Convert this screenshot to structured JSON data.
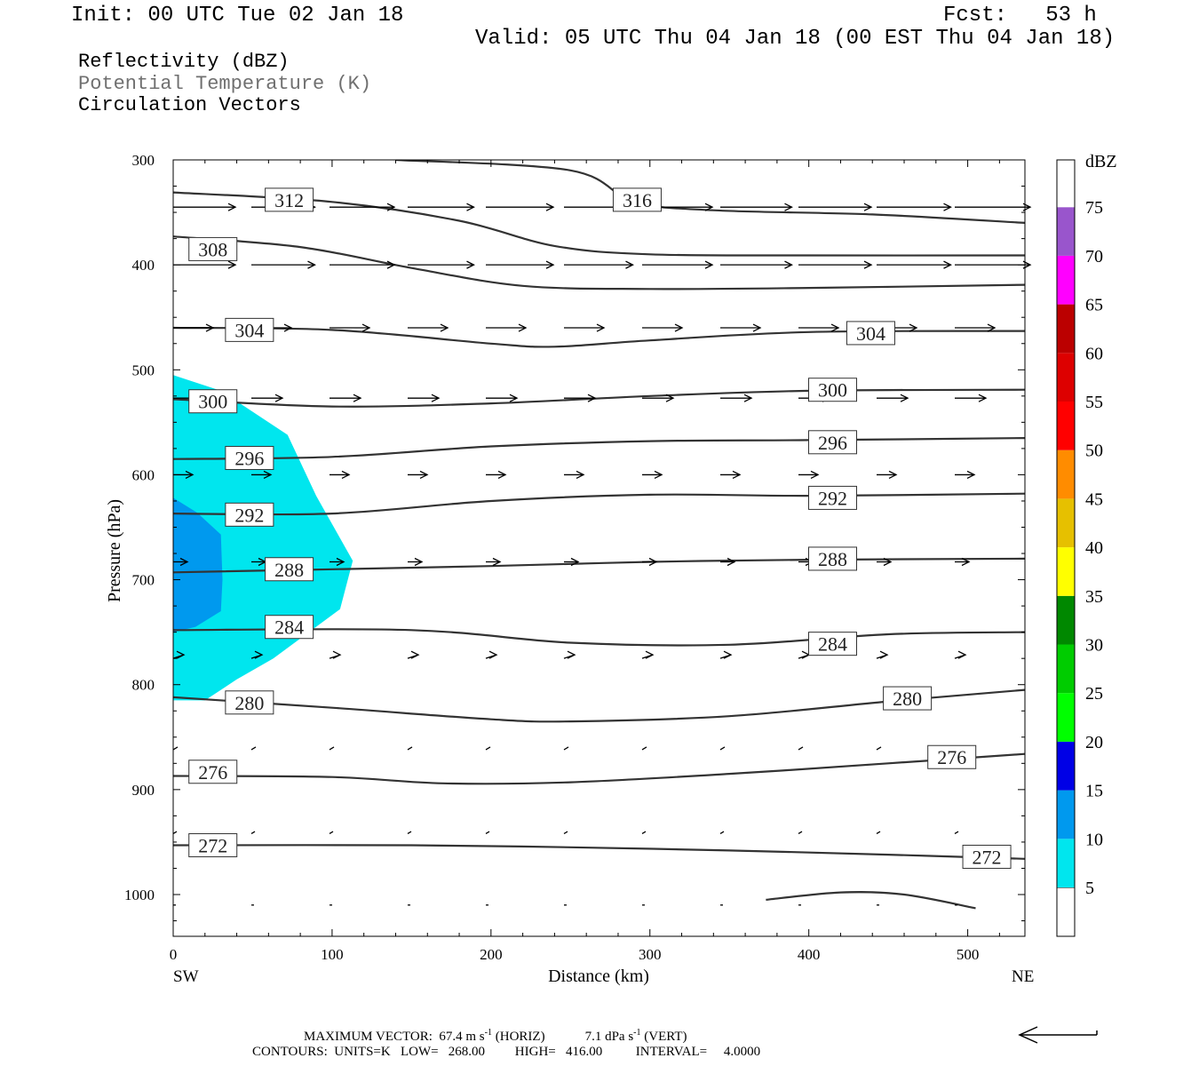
{
  "header": {
    "init": "Init: 00 UTC Tue 02 Jan 18",
    "fcst": "Fcst:   53 h",
    "valid": "Valid: 05 UTC Thu 04 Jan 18 (00 EST Thu 04 Jan 18)"
  },
  "legend_lines": {
    "reflectivity": "Reflectivity (dBZ)",
    "theta": "Potential Temperature (K)",
    "vectors": "Circulation Vectors"
  },
  "footer": {
    "max_vector_label": "MAXIMUM VECTOR:",
    "max_horiz": "67.4 m s",
    "horiz_tag": "(HORIZ)",
    "max_vert": "7.1 dPa s",
    "vert_tag": "(VERT)",
    "contours": "CONTOURS:  UNITS=K   LOW=   268.00         HIGH=   416.00          INTERVAL=     4.0000"
  },
  "colors": {
    "dbz_5": "#00e6ee",
    "dbz_10": "#0099ee",
    "dbz_15": "#0000e6",
    "contour": "#333333"
  },
  "chart_data": {
    "type": "cross-section",
    "xlabel": "Distance (km)",
    "ylabel": "Pressure (hPa)",
    "xlim": [
      0,
      536
    ],
    "ylim": [
      1040,
      300
    ],
    "x_ticks": [
      0,
      100,
      200,
      300,
      400,
      500
    ],
    "y_ticks": [
      300,
      400,
      500,
      600,
      700,
      800,
      900,
      1000
    ],
    "x_end_labels": {
      "left": "SW",
      "right": "NE"
    },
    "colorbar": {
      "unit": "dBZ",
      "levels": [
        5,
        10,
        15,
        20,
        25,
        30,
        35,
        40,
        45,
        50,
        55,
        60,
        65,
        70,
        75
      ],
      "colors": [
        "#00e6ee",
        "#0099ee",
        "#0000e6",
        "#00ff00",
        "#00cc00",
        "#008800",
        "#ffff00",
        "#e6c000",
        "#ff8c00",
        "#ff0000",
        "#dd0000",
        "#bb0000",
        "#ff00ff",
        "#9955cc",
        "#ffffff"
      ]
    },
    "reflectivity": [
      {
        "level": 5,
        "polygon": [
          [
            0,
            505
          ],
          [
            30,
            520
          ],
          [
            72,
            562
          ],
          [
            90,
            620
          ],
          [
            113,
            682
          ],
          [
            105,
            728
          ],
          [
            63,
            775
          ],
          [
            40,
            795
          ],
          [
            20,
            815
          ],
          [
            0,
            815
          ]
        ]
      },
      {
        "level": 10,
        "polygon": [
          [
            0,
            622
          ],
          [
            15,
            636
          ],
          [
            30,
            657
          ],
          [
            31,
            700
          ],
          [
            30,
            730
          ],
          [
            14,
            745
          ],
          [
            0,
            750
          ]
        ]
      }
    ],
    "theta_contours": [
      {
        "value": 272,
        "points": [
          [
            0,
            953
          ],
          [
            150,
            953
          ],
          [
            250,
            955
          ],
          [
            350,
            958
          ],
          [
            450,
            962
          ],
          [
            536,
            966
          ]
        ],
        "labels": [
          [
            25,
            953
          ],
          [
            512,
            964
          ]
        ]
      },
      {
        "value": 276,
        "points": [
          [
            0,
            887
          ],
          [
            100,
            888
          ],
          [
            170,
            894
          ],
          [
            250,
            893
          ],
          [
            350,
            885
          ],
          [
            450,
            875
          ],
          [
            536,
            866
          ]
        ],
        "labels": [
          [
            25,
            883
          ],
          [
            490,
            869
          ]
        ]
      },
      {
        "value": 280,
        "points": [
          [
            0,
            812
          ],
          [
            100,
            822
          ],
          [
            200,
            833
          ],
          [
            250,
            835
          ],
          [
            350,
            830
          ],
          [
            450,
            816
          ],
          [
            536,
            805
          ]
        ],
        "labels": [
          [
            48,
            817
          ],
          [
            462,
            813
          ]
        ]
      },
      {
        "value": 284,
        "points": [
          [
            0,
            748
          ],
          [
            150,
            748
          ],
          [
            250,
            760
          ],
          [
            350,
            762
          ],
          [
            450,
            752
          ],
          [
            536,
            750
          ]
        ],
        "labels": [
          [
            73,
            745
          ],
          [
            415,
            761
          ]
        ]
      },
      {
        "value": 288,
        "points": [
          [
            0,
            693
          ],
          [
            200,
            687
          ],
          [
            300,
            683
          ],
          [
            400,
            681
          ],
          [
            536,
            680
          ]
        ],
        "labels": [
          [
            73,
            690
          ],
          [
            415,
            680
          ]
        ]
      },
      {
        "value": 292,
        "points": [
          [
            0,
            637
          ],
          [
            100,
            637
          ],
          [
            200,
            625
          ],
          [
            300,
            619
          ],
          [
            400,
            620
          ],
          [
            536,
            618
          ]
        ],
        "labels": [
          [
            48,
            638
          ],
          [
            415,
            622
          ]
        ]
      },
      {
        "value": 296,
        "points": [
          [
            0,
            585
          ],
          [
            100,
            583
          ],
          [
            200,
            573
          ],
          [
            300,
            568
          ],
          [
            400,
            567
          ],
          [
            536,
            565
          ]
        ],
        "labels": [
          [
            48,
            584
          ],
          [
            415,
            569
          ]
        ]
      },
      {
        "value": 300,
        "points": [
          [
            0,
            528
          ],
          [
            100,
            535
          ],
          [
            200,
            532
          ],
          [
            300,
            525
          ],
          [
            400,
            520
          ],
          [
            536,
            519
          ]
        ],
        "labels": [
          [
            25,
            530
          ],
          [
            415,
            519
          ]
        ]
      },
      {
        "value": 304,
        "points": [
          [
            0,
            460
          ],
          [
            100,
            462
          ],
          [
            200,
            475
          ],
          [
            240,
            478
          ],
          [
            300,
            472
          ],
          [
            400,
            464
          ],
          [
            536,
            463
          ]
        ],
        "labels": [
          [
            48,
            462
          ],
          [
            439,
            465
          ]
        ]
      },
      {
        "value": 308,
        "points": [
          [
            0,
            373
          ],
          [
            80,
            383
          ],
          [
            150,
            403
          ],
          [
            220,
            420
          ],
          [
            300,
            423
          ],
          [
            400,
            422
          ],
          [
            536,
            419
          ]
        ],
        "labels": [
          [
            25,
            385
          ]
        ]
      },
      {
        "value": 312,
        "points": [
          [
            0,
            331
          ],
          [
            100,
            340
          ],
          [
            180,
            358
          ],
          [
            240,
            382
          ],
          [
            300,
            390
          ],
          [
            400,
            391
          ],
          [
            536,
            391
          ]
        ],
        "labels": [
          [
            73,
            338
          ]
        ]
      },
      {
        "value": 316,
        "points": [
          [
            140,
            300
          ],
          [
            250,
            310
          ],
          [
            290,
            340
          ],
          [
            340,
            348
          ],
          [
            440,
            352
          ],
          [
            536,
            360
          ]
        ],
        "labels": [
          [
            292,
            338
          ]
        ]
      }
    ],
    "theta_fragment": {
      "points": [
        [
          373,
          1005
        ],
        [
          420,
          998
        ],
        [
          460,
          1000
        ],
        [
          505,
          1013
        ]
      ]
    }
  }
}
